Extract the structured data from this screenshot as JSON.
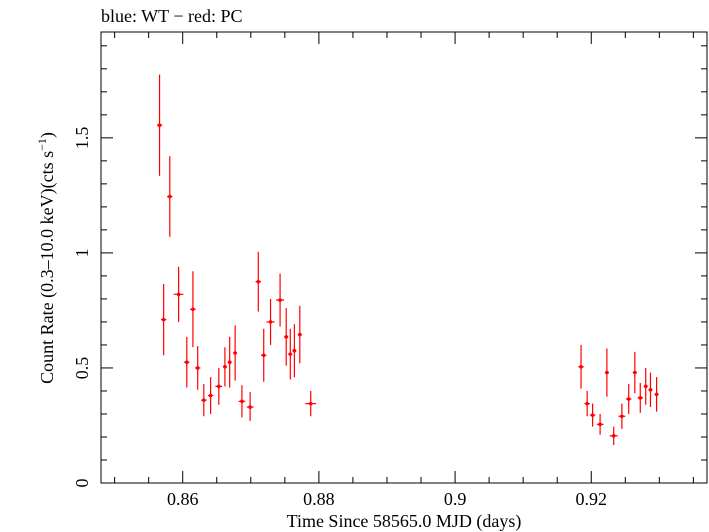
{
  "chart_data": {
    "type": "scatter",
    "title": "blue: WT − red: PC",
    "xlabel": "Time Since 58565.0 MJD (days)",
    "ylabel_main": "Count Rate (0.3–10.0 keV)(cts s",
    "ylabel_sup": "−1",
    "ylabel_end": ")",
    "xlim": [
      0.848,
      0.937
    ],
    "ylim": [
      0,
      1.96
    ],
    "x_ticks": [
      0.86,
      0.88,
      0.9,
      0.92
    ],
    "x_tick_labels": [
      "0.86",
      "0.88",
      "0.9",
      "0.92"
    ],
    "y_ticks": [
      0,
      0.5,
      1,
      1.5
    ],
    "y_tick_labels": [
      "0",
      "0.5",
      "1",
      "1.5"
    ],
    "grid": false,
    "series": [
      {
        "color": "#ff0000",
        "points": [
          {
            "x": 0.8566,
            "y": 1.555,
            "xerr": 0.0004,
            "ylo": 1.335,
            "yhi": 1.775
          },
          {
            "x": 0.8572,
            "y": 0.71,
            "xerr": 0.0004,
            "ylo": 0.555,
            "yhi": 0.865
          },
          {
            "x": 0.8581,
            "y": 1.245,
            "xerr": 0.0004,
            "ylo": 1.07,
            "yhi": 1.42
          },
          {
            "x": 0.8594,
            "y": 0.82,
            "xerr": 0.0007,
            "ylo": 0.7,
            "yhi": 0.94
          },
          {
            "x": 0.8606,
            "y": 0.525,
            "xerr": 0.0004,
            "ylo": 0.415,
            "yhi": 0.635
          },
          {
            "x": 0.8615,
            "y": 0.755,
            "xerr": 0.0004,
            "ylo": 0.59,
            "yhi": 0.92
          },
          {
            "x": 0.8622,
            "y": 0.5,
            "xerr": 0.0004,
            "ylo": 0.405,
            "yhi": 0.595
          },
          {
            "x": 0.8631,
            "y": 0.36,
            "xerr": 0.0004,
            "ylo": 0.29,
            "yhi": 0.43
          },
          {
            "x": 0.8641,
            "y": 0.38,
            "xerr": 0.0004,
            "ylo": 0.3,
            "yhi": 0.46
          },
          {
            "x": 0.8653,
            "y": 0.42,
            "xerr": 0.0005,
            "ylo": 0.34,
            "yhi": 0.5
          },
          {
            "x": 0.8662,
            "y": 0.505,
            "xerr": 0.0003,
            "ylo": 0.42,
            "yhi": 0.59
          },
          {
            "x": 0.8669,
            "y": 0.525,
            "xerr": 0.0003,
            "ylo": 0.415,
            "yhi": 0.635
          },
          {
            "x": 0.8677,
            "y": 0.565,
            "xerr": 0.0003,
            "ylo": 0.445,
            "yhi": 0.685
          },
          {
            "x": 0.8687,
            "y": 0.355,
            "xerr": 0.0005,
            "ylo": 0.285,
            "yhi": 0.425
          },
          {
            "x": 0.8699,
            "y": 0.33,
            "xerr": 0.0005,
            "ylo": 0.27,
            "yhi": 0.395
          },
          {
            "x": 0.8711,
            "y": 0.875,
            "xerr": 0.0004,
            "ylo": 0.745,
            "yhi": 1.005
          },
          {
            "x": 0.8719,
            "y": 0.555,
            "xerr": 0.0004,
            "ylo": 0.44,
            "yhi": 0.67
          },
          {
            "x": 0.8729,
            "y": 0.7,
            "xerr": 0.0006,
            "ylo": 0.6,
            "yhi": 0.8
          },
          {
            "x": 0.8743,
            "y": 0.795,
            "xerr": 0.0006,
            "ylo": 0.68,
            "yhi": 0.91
          },
          {
            "x": 0.8752,
            "y": 0.635,
            "xerr": 0.0003,
            "ylo": 0.51,
            "yhi": 0.76
          },
          {
            "x": 0.8758,
            "y": 0.56,
            "xerr": 0.0003,
            "ylo": 0.45,
            "yhi": 0.67
          },
          {
            "x": 0.8764,
            "y": 0.575,
            "xerr": 0.0003,
            "ylo": 0.46,
            "yhi": 0.69
          },
          {
            "x": 0.8772,
            "y": 0.645,
            "xerr": 0.0003,
            "ylo": 0.52,
            "yhi": 0.77
          },
          {
            "x": 0.8788,
            "y": 0.345,
            "xerr": 0.0008,
            "ylo": 0.29,
            "yhi": 0.4
          },
          {
            "x": 0.9185,
            "y": 0.505,
            "xerr": 0.0004,
            "ylo": 0.41,
            "yhi": 0.6
          },
          {
            "x": 0.9194,
            "y": 0.345,
            "xerr": 0.0004,
            "ylo": 0.29,
            "yhi": 0.4
          },
          {
            "x": 0.9202,
            "y": 0.295,
            "xerr": 0.0004,
            "ylo": 0.245,
            "yhi": 0.345
          },
          {
            "x": 0.9213,
            "y": 0.255,
            "xerr": 0.0005,
            "ylo": 0.21,
            "yhi": 0.3
          },
          {
            "x": 0.9223,
            "y": 0.48,
            "xerr": 0.0003,
            "ylo": 0.375,
            "yhi": 0.585
          },
          {
            "x": 0.9233,
            "y": 0.205,
            "xerr": 0.0006,
            "ylo": 0.165,
            "yhi": 0.245
          },
          {
            "x": 0.9245,
            "y": 0.29,
            "xerr": 0.0005,
            "ylo": 0.235,
            "yhi": 0.345
          },
          {
            "x": 0.9255,
            "y": 0.365,
            "xerr": 0.0004,
            "ylo": 0.3,
            "yhi": 0.43
          },
          {
            "x": 0.9264,
            "y": 0.48,
            "xerr": 0.0003,
            "ylo": 0.39,
            "yhi": 0.57
          },
          {
            "x": 0.9272,
            "y": 0.37,
            "xerr": 0.0004,
            "ylo": 0.305,
            "yhi": 0.435
          },
          {
            "x": 0.928,
            "y": 0.42,
            "xerr": 0.0003,
            "ylo": 0.34,
            "yhi": 0.5
          },
          {
            "x": 0.9287,
            "y": 0.405,
            "xerr": 0.0003,
            "ylo": 0.33,
            "yhi": 0.48
          },
          {
            "x": 0.9296,
            "y": 0.385,
            "xerr": 0.0003,
            "ylo": 0.31,
            "yhi": 0.46
          }
        ]
      }
    ]
  }
}
